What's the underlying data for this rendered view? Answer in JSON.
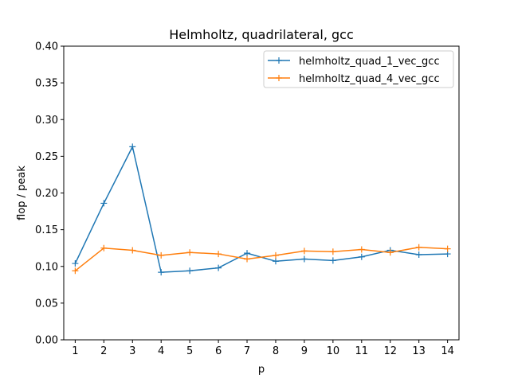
{
  "chart_data": {
    "type": "line",
    "title": "Helmholtz, quadrilateral, gcc",
    "xlabel": "p",
    "ylabel": "flop / peak",
    "x": [
      1,
      2,
      3,
      4,
      5,
      6,
      7,
      8,
      9,
      10,
      11,
      12,
      13,
      14
    ],
    "xticks": [
      "1",
      "2",
      "3",
      "4",
      "5",
      "6",
      "7",
      "8",
      "9",
      "10",
      "11",
      "12",
      "13",
      "14"
    ],
    "ylim": [
      0.0,
      0.4
    ],
    "yticks": [
      "0.00",
      "0.05",
      "0.10",
      "0.15",
      "0.20",
      "0.25",
      "0.30",
      "0.35",
      "0.40"
    ],
    "grid": false,
    "legend_position": "top-right",
    "series": [
      {
        "name": "helmholtz_quad_1_vec_gcc",
        "color": "#1f77b4",
        "marker": "plus",
        "values": [
          0.104,
          0.186,
          0.263,
          0.092,
          0.094,
          0.098,
          0.118,
          0.107,
          0.11,
          0.108,
          0.113,
          0.122,
          0.116,
          0.117
        ]
      },
      {
        "name": "helmholtz_quad_4_vec_gcc",
        "color": "#ff7f0e",
        "marker": "plus",
        "values": [
          0.094,
          0.125,
          0.122,
          0.115,
          0.119,
          0.117,
          0.11,
          0.115,
          0.121,
          0.12,
          0.123,
          0.119,
          0.126,
          0.124
        ]
      }
    ]
  }
}
